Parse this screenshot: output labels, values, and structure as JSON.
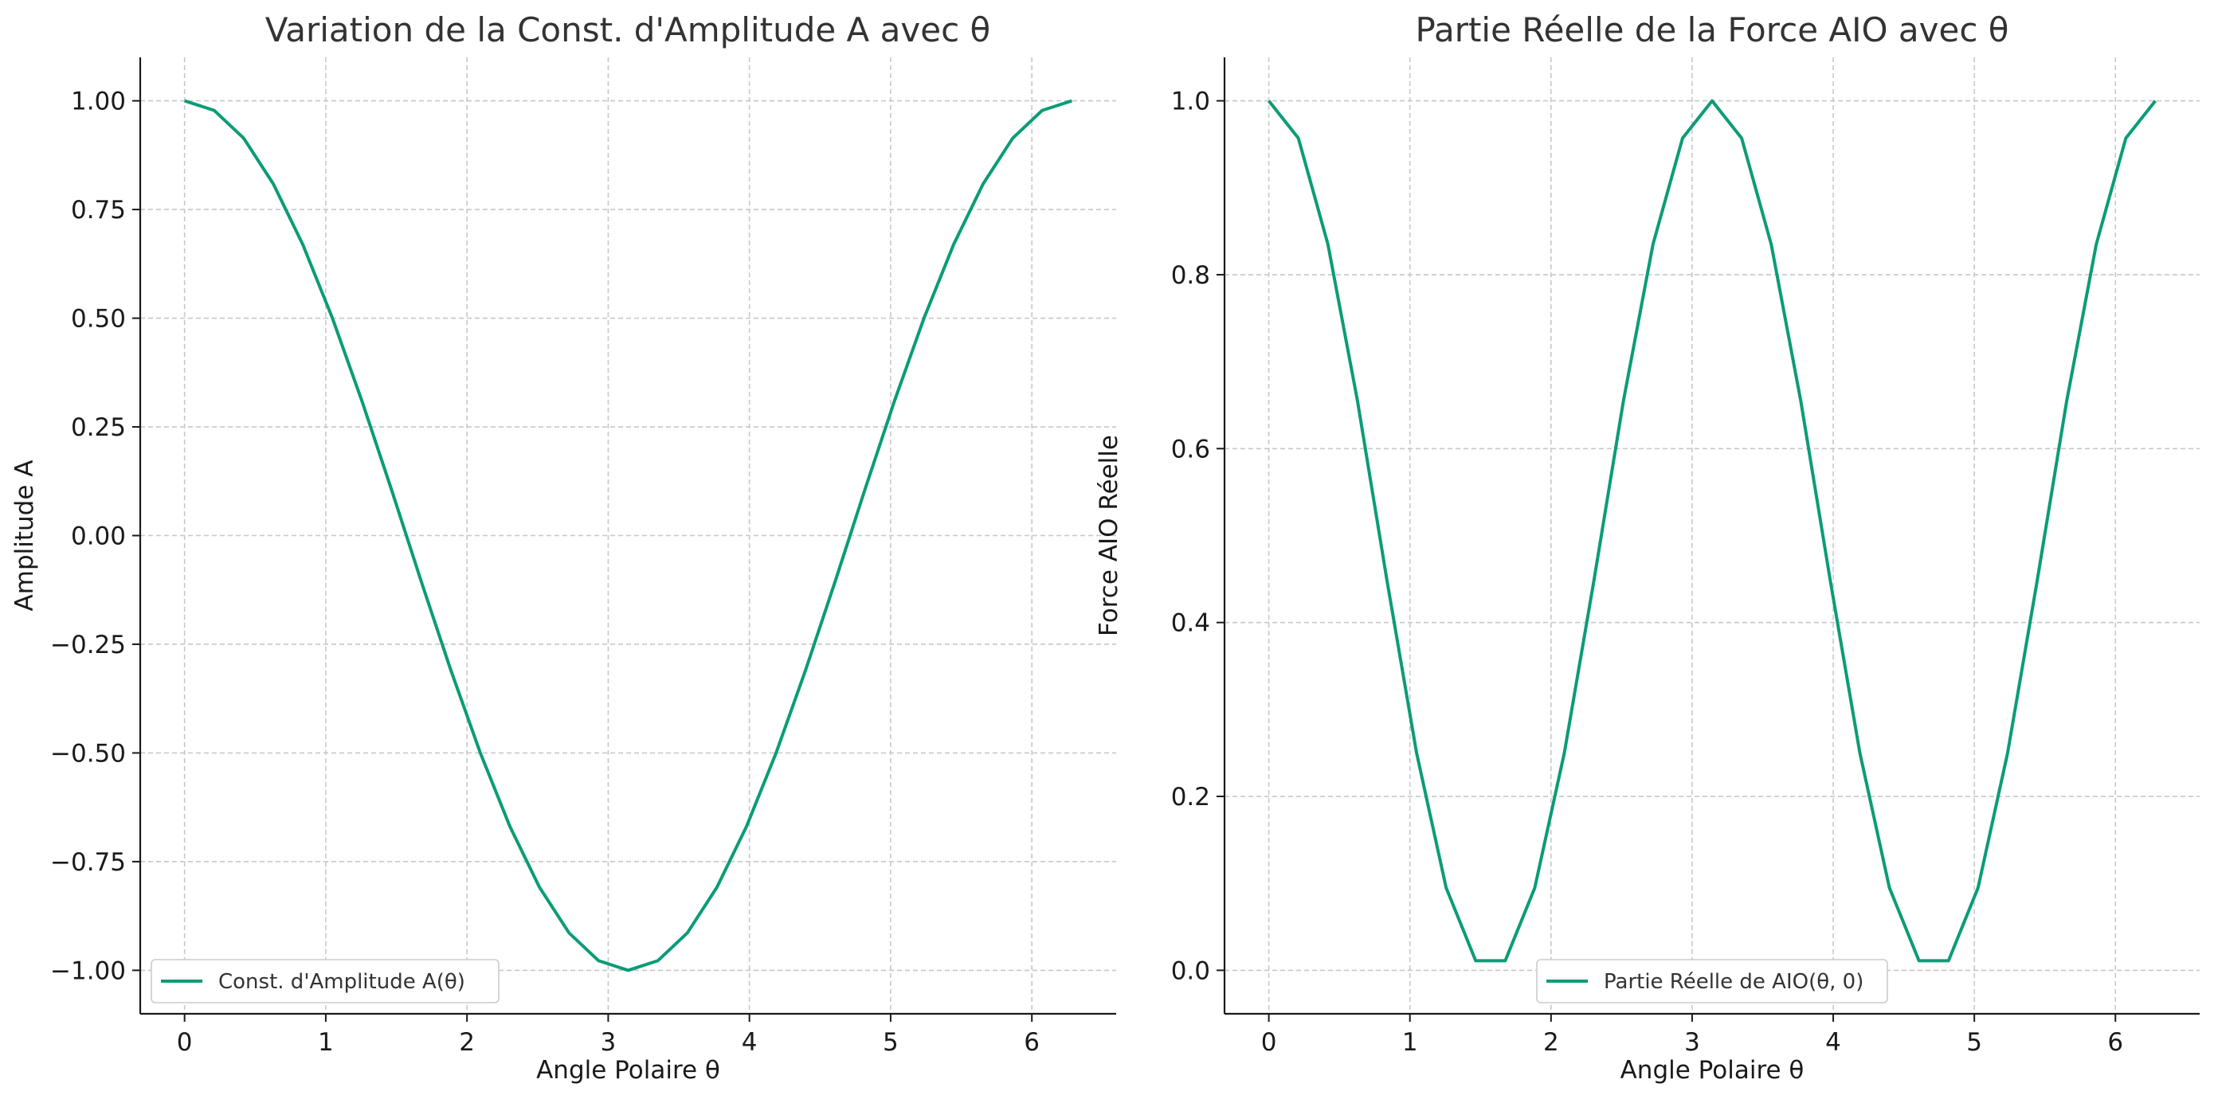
{
  "colors": {
    "series": "#0b9c77",
    "text": "#1a1a1a",
    "grid": "#c8c8c8"
  },
  "chart_data": [
    {
      "type": "line",
      "title": "Variation de la Const. d'Amplitude A avec θ",
      "xlabel": "Angle Polaire θ",
      "ylabel": "Amplitude A",
      "xlim": [
        -0.314,
        6.597
      ],
      "ylim": [
        -1.1,
        1.1
      ],
      "xticks": [
        0,
        1,
        2,
        3,
        4,
        5,
        6
      ],
      "xtick_labels": [
        "0",
        "1",
        "2",
        "3",
        "4",
        "5",
        "6"
      ],
      "yticks": [
        1.0,
        0.75,
        0.5,
        0.25,
        0.0,
        -0.25,
        -0.5,
        -0.75,
        -1.0
      ],
      "ytick_labels": [
        "1.00",
        "0.75",
        "0.50",
        "0.25",
        "0.00",
        "−0.25",
        "−0.50",
        "−0.75",
        "−1.00"
      ],
      "grid": true,
      "legend_position": "lower-left",
      "series": [
        {
          "name": "Const. d'Amplitude A(θ)",
          "color": "#0b9c77",
          "x": [
            0,
            0.2094,
            0.4189,
            0.6283,
            0.8378,
            1.0472,
            1.2566,
            1.4661,
            1.6755,
            1.885,
            2.0944,
            2.3038,
            2.5133,
            2.7227,
            2.9322,
            3.1416,
            3.351,
            3.5605,
            3.7699,
            3.9794,
            4.1888,
            4.3982,
            4.6077,
            4.8171,
            5.0265,
            5.236,
            5.4454,
            5.6549,
            5.8643,
            6.0737,
            6.2832
          ],
          "y": [
            1.0,
            0.978,
            0.914,
            0.809,
            0.669,
            0.5,
            0.309,
            0.105,
            -0.105,
            -0.309,
            -0.5,
            -0.669,
            -0.809,
            -0.914,
            -0.978,
            -1.0,
            -0.978,
            -0.914,
            -0.809,
            -0.669,
            -0.5,
            -0.309,
            -0.105,
            0.105,
            0.309,
            0.5,
            0.669,
            0.809,
            0.914,
            0.978,
            1.0
          ]
        }
      ]
    },
    {
      "type": "line",
      "title": "Partie Réelle de la Force AIO avec θ",
      "xlabel": "Angle Polaire θ",
      "ylabel": "Force AIO Réelle",
      "xlim": [
        -0.314,
        6.597
      ],
      "ylim": [
        -0.05,
        1.05
      ],
      "xticks": [
        0,
        1,
        2,
        3,
        4,
        5,
        6
      ],
      "xtick_labels": [
        "0",
        "1",
        "2",
        "3",
        "4",
        "5",
        "6"
      ],
      "yticks": [
        1.0,
        0.8,
        0.6,
        0.4,
        0.2,
        0.0
      ],
      "ytick_labels": [
        "1.0",
        "0.8",
        "0.6",
        "0.4",
        "0.2",
        "0.0"
      ],
      "grid": true,
      "legend_position": "lower-center",
      "series": [
        {
          "name": "Partie Réelle de AIO(θ, 0)",
          "color": "#0b9c77",
          "x": [
            0,
            0.2094,
            0.4189,
            0.6283,
            0.8378,
            1.0472,
            1.2566,
            1.4661,
            1.6755,
            1.885,
            2.0944,
            2.3038,
            2.5133,
            2.7227,
            2.9322,
            3.1416,
            3.351,
            3.5605,
            3.7699,
            3.9794,
            4.1888,
            4.3982,
            4.6077,
            4.8171,
            5.0265,
            5.236,
            5.4454,
            5.6549,
            5.8643,
            6.0737,
            6.2832
          ],
          "y": [
            1.0,
            0.957,
            0.835,
            0.655,
            0.448,
            0.25,
            0.095,
            0.011,
            0.011,
            0.095,
            0.25,
            0.448,
            0.655,
            0.835,
            0.957,
            1.0,
            0.957,
            0.835,
            0.655,
            0.448,
            0.25,
            0.095,
            0.011,
            0.011,
            0.095,
            0.25,
            0.448,
            0.655,
            0.835,
            0.957,
            1.0
          ]
        }
      ]
    }
  ]
}
